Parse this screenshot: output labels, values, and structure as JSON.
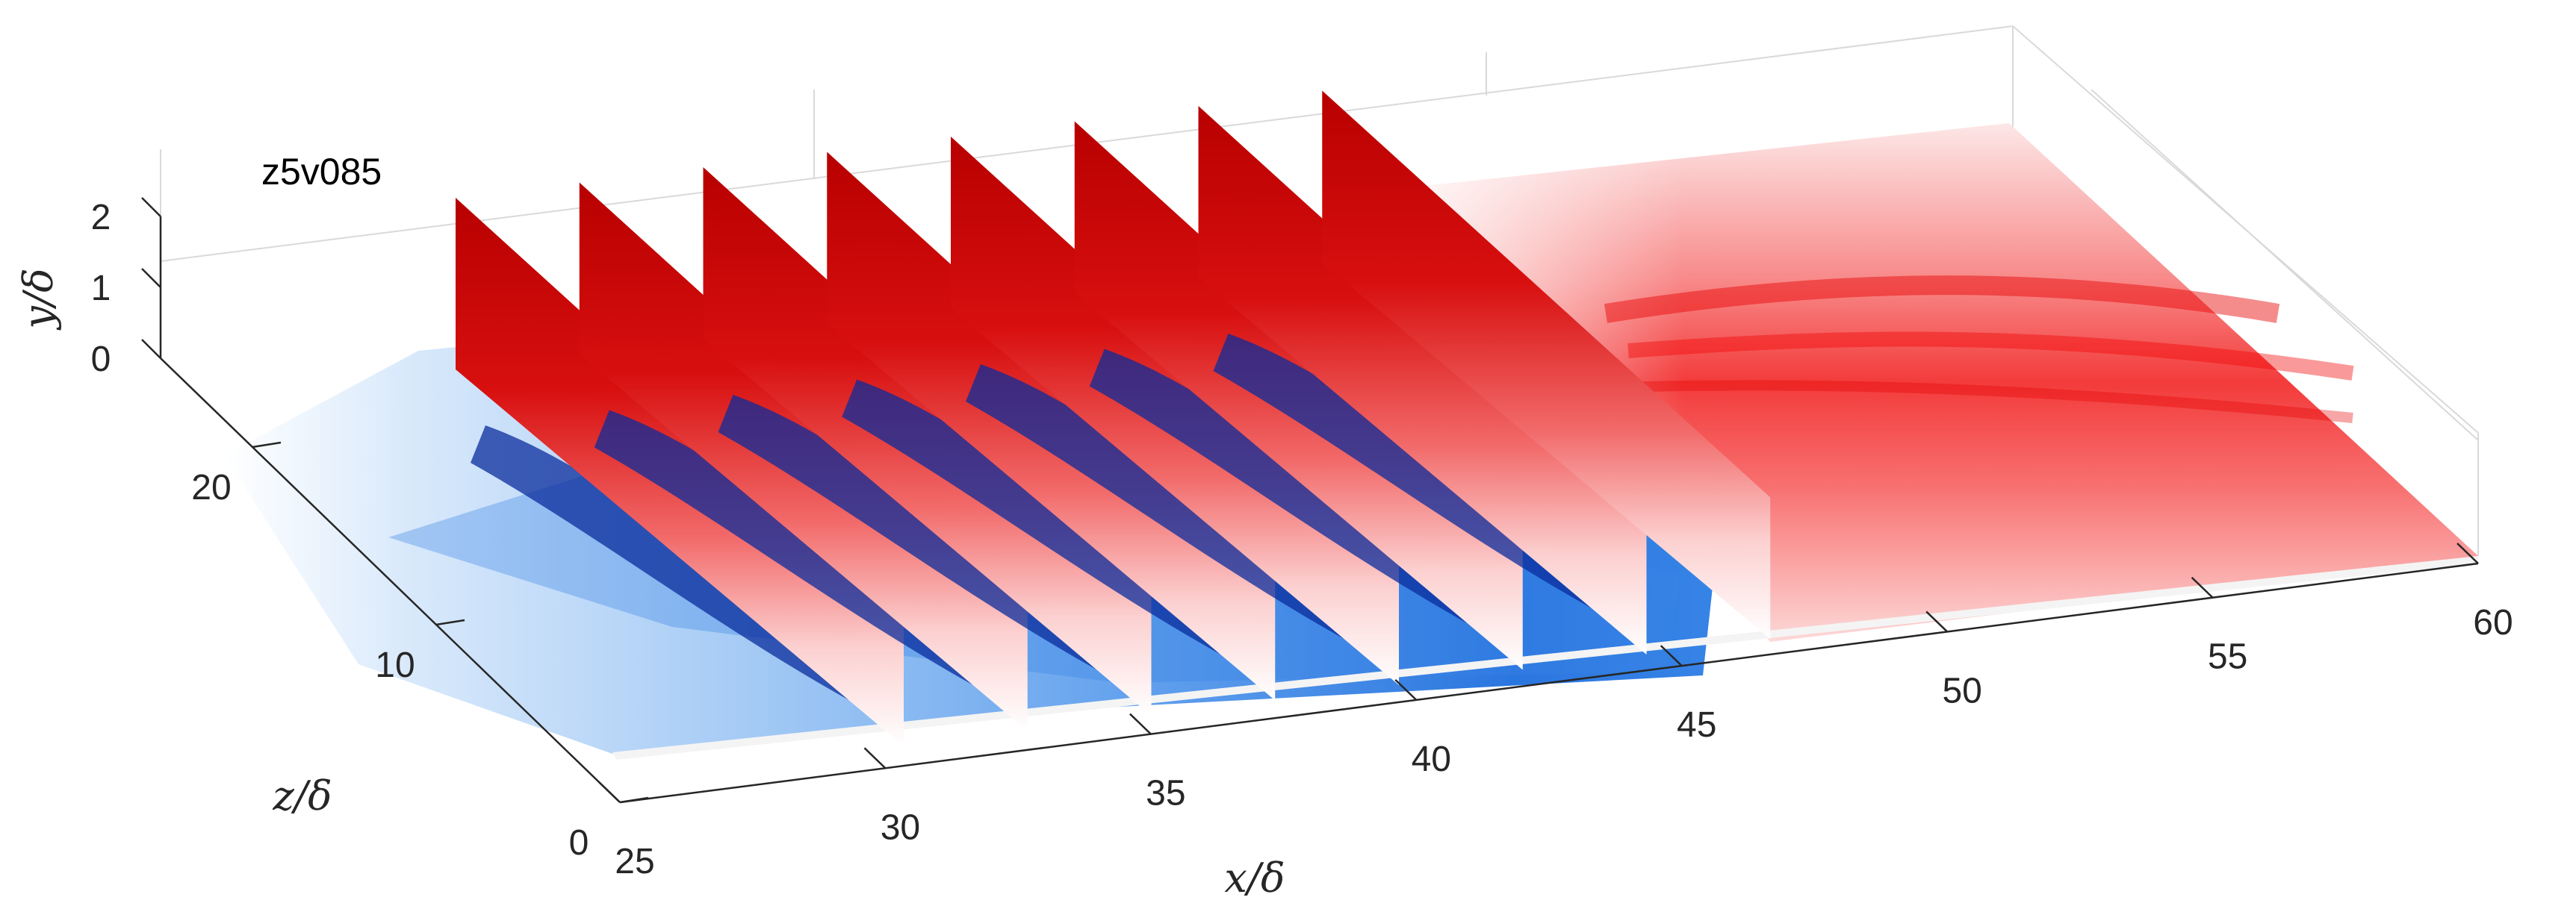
{
  "chart_data": {
    "type": "surface",
    "title": "z5v085",
    "xlabel": "x/δ",
    "ylabel": "y/δ",
    "zlabel": "z/δ",
    "x_ticks": [
      "25",
      "30",
      "35",
      "40",
      "45",
      "50",
      "55",
      "60"
    ],
    "y_ticks": [
      "0",
      "1",
      "2"
    ],
    "z_ticks": [
      "0",
      "10",
      "20"
    ],
    "xlim": [
      25,
      60
    ],
    "ylim": [
      0,
      2
    ],
    "zlim": [
      0,
      25
    ],
    "slice_x_positions": [
      30,
      32.5,
      35,
      37.5,
      40,
      42.5,
      45,
      47.5
    ],
    "grid": true,
    "colormap": {
      "negative": "#00208f",
      "zero": "#ffffff",
      "positive": "#c40000"
    }
  }
}
